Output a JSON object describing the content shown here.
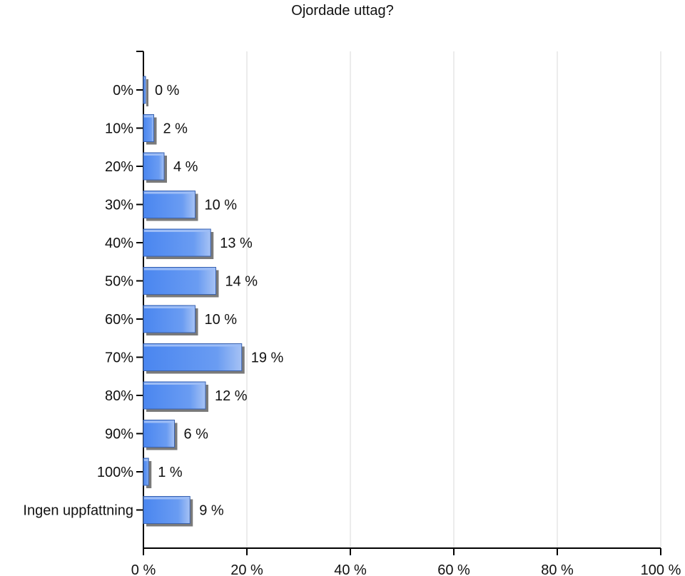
{
  "chart_data": {
    "type": "bar",
    "orientation": "horizontal",
    "title": "Ojordade uttag?",
    "xlabel": "",
    "ylabel": "",
    "categories": [
      "0%",
      "10%",
      "20%",
      "30%",
      "40%",
      "50%",
      "60%",
      "70%",
      "80%",
      "90%",
      "100%",
      "Ingen uppfattning"
    ],
    "values": [
      0,
      2,
      4,
      10,
      13,
      14,
      10,
      19,
      12,
      6,
      1,
      9
    ],
    "data_labels": [
      "0 %",
      "2 %",
      "4 %",
      "10 %",
      "13 %",
      "14 %",
      "10 %",
      "19 %",
      "12 %",
      "6 %",
      "1 %",
      "9 %"
    ],
    "xlim": [
      0,
      100
    ],
    "x_ticks": [
      0,
      20,
      40,
      60,
      80,
      100
    ],
    "x_tick_labels": [
      "0 %",
      "20 %",
      "40 %",
      "60 %",
      "80 %",
      "100 %"
    ],
    "grid": "vertical",
    "legend": "none",
    "colors": {
      "bar": "#5b8ff0",
      "bar_light": "#9dbdf6",
      "bar_dark": "#3a63b0",
      "shadow": "#7a7a7a",
      "grid": "#d8d8d8",
      "axis": "#000000"
    }
  }
}
